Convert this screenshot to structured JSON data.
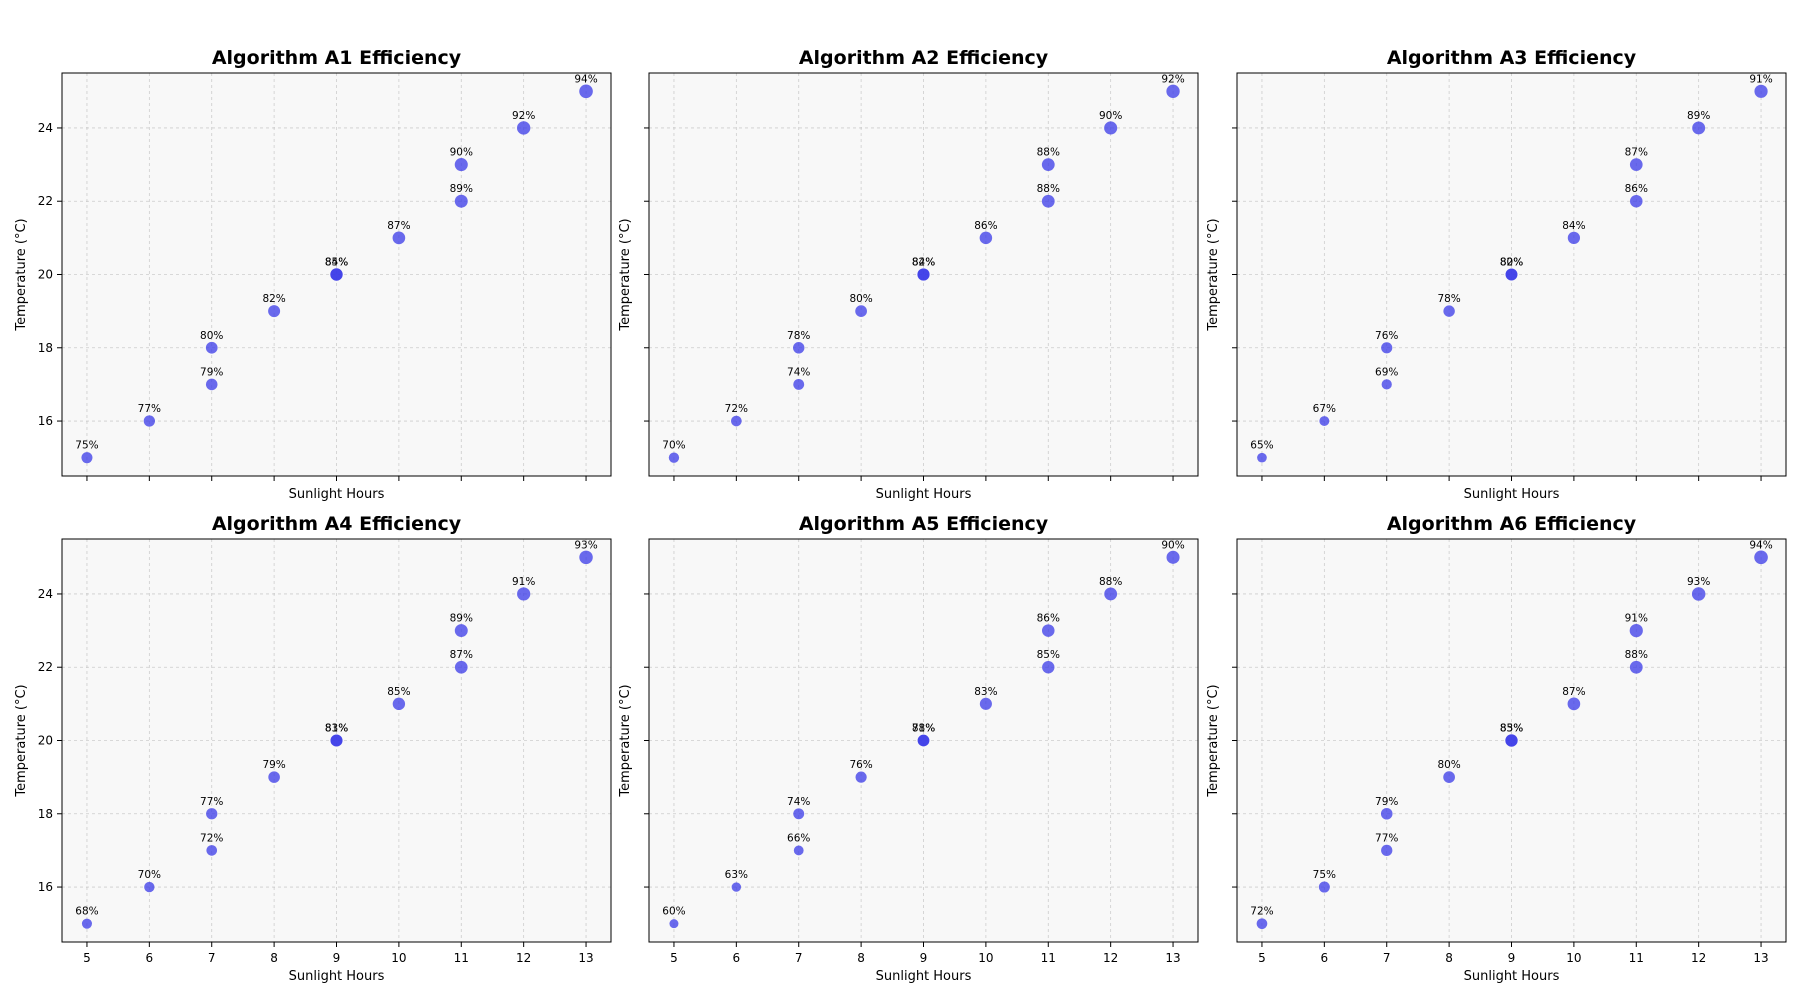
{
  "figure": {
    "background": "#ffffff",
    "panel_background": "#f8f8f8",
    "point_color": "#3a3ae8",
    "grid": true,
    "sharex": true,
    "sharey": true
  },
  "chart_data": [
    {
      "type": "scatter",
      "title": "Algorithm A1 Efficiency",
      "xlabel": "Sunlight Hours",
      "ylabel": "Temperature (°C)",
      "xlim": [
        4.6,
        13.4
      ],
      "ylim": [
        14.5,
        25.5
      ],
      "xticks": [
        5,
        6,
        7,
        8,
        9,
        10,
        11,
        12,
        13
      ],
      "yticks": [
        16,
        18,
        20,
        22,
        24
      ],
      "points": [
        {
          "x": 5,
          "y": 15,
          "label": "75%"
        },
        {
          "x": 6,
          "y": 16,
          "label": "77%"
        },
        {
          "x": 7,
          "y": 17,
          "label": "79%"
        },
        {
          "x": 7,
          "y": 18,
          "label": "80%"
        },
        {
          "x": 8,
          "y": 19,
          "label": "82%"
        },
        {
          "x": 9,
          "y": 20,
          "label": "85%"
        },
        {
          "x": 9,
          "y": 20,
          "label": "84%"
        },
        {
          "x": 10,
          "y": 21,
          "label": "87%"
        },
        {
          "x": 11,
          "y": 22,
          "label": "89%"
        },
        {
          "x": 11,
          "y": 23,
          "label": "90%"
        },
        {
          "x": 12,
          "y": 24,
          "label": "92%"
        },
        {
          "x": 13,
          "y": 25,
          "label": "94%"
        }
      ]
    },
    {
      "type": "scatter",
      "title": "Algorithm A2 Efficiency",
      "xlabel": "Sunlight Hours",
      "ylabel": "Temperature (°C)",
      "xlim": [
        4.6,
        13.4
      ],
      "ylim": [
        14.5,
        25.5
      ],
      "xticks": [
        5,
        6,
        7,
        8,
        9,
        10,
        11,
        12,
        13
      ],
      "yticks": [
        16,
        18,
        20,
        22,
        24
      ],
      "points": [
        {
          "x": 5,
          "y": 15,
          "label": "70%"
        },
        {
          "x": 6,
          "y": 16,
          "label": "72%"
        },
        {
          "x": 7,
          "y": 17,
          "label": "74%"
        },
        {
          "x": 7,
          "y": 18,
          "label": "78%"
        },
        {
          "x": 8,
          "y": 19,
          "label": "80%"
        },
        {
          "x": 9,
          "y": 20,
          "label": "82%"
        },
        {
          "x": 9,
          "y": 20,
          "label": "84%"
        },
        {
          "x": 10,
          "y": 21,
          "label": "86%"
        },
        {
          "x": 11,
          "y": 22,
          "label": "88%"
        },
        {
          "x": 11,
          "y": 23,
          "label": "88%"
        },
        {
          "x": 12,
          "y": 24,
          "label": "90%"
        },
        {
          "x": 13,
          "y": 25,
          "label": "92%"
        }
      ]
    },
    {
      "type": "scatter",
      "title": "Algorithm A3 Efficiency",
      "xlabel": "Sunlight Hours",
      "ylabel": "Temperature (°C)",
      "xlim": [
        4.6,
        13.4
      ],
      "ylim": [
        14.5,
        25.5
      ],
      "xticks": [
        5,
        6,
        7,
        8,
        9,
        10,
        11,
        12,
        13
      ],
      "yticks": [
        16,
        18,
        20,
        22,
        24
      ],
      "points": [
        {
          "x": 5,
          "y": 15,
          "label": "65%"
        },
        {
          "x": 6,
          "y": 16,
          "label": "67%"
        },
        {
          "x": 7,
          "y": 17,
          "label": "69%"
        },
        {
          "x": 7,
          "y": 18,
          "label": "76%"
        },
        {
          "x": 8,
          "y": 19,
          "label": "78%"
        },
        {
          "x": 9,
          "y": 20,
          "label": "80%"
        },
        {
          "x": 9,
          "y": 20,
          "label": "82%"
        },
        {
          "x": 10,
          "y": 21,
          "label": "84%"
        },
        {
          "x": 11,
          "y": 22,
          "label": "86%"
        },
        {
          "x": 11,
          "y": 23,
          "label": "87%"
        },
        {
          "x": 12,
          "y": 24,
          "label": "89%"
        },
        {
          "x": 13,
          "y": 25,
          "label": "91%"
        }
      ]
    },
    {
      "type": "scatter",
      "title": "Algorithm A4 Efficiency",
      "xlabel": "Sunlight Hours",
      "ylabel": "Temperature (°C)",
      "xlim": [
        4.6,
        13.4
      ],
      "ylim": [
        14.5,
        25.5
      ],
      "xticks": [
        5,
        6,
        7,
        8,
        9,
        10,
        11,
        12,
        13
      ],
      "yticks": [
        16,
        18,
        20,
        22,
        24
      ],
      "points": [
        {
          "x": 5,
          "y": 15,
          "label": "68%"
        },
        {
          "x": 6,
          "y": 16,
          "label": "70%"
        },
        {
          "x": 7,
          "y": 17,
          "label": "72%"
        },
        {
          "x": 7,
          "y": 18,
          "label": "77%"
        },
        {
          "x": 8,
          "y": 19,
          "label": "79%"
        },
        {
          "x": 9,
          "y": 20,
          "label": "81%"
        },
        {
          "x": 9,
          "y": 20,
          "label": "83%"
        },
        {
          "x": 10,
          "y": 21,
          "label": "85%"
        },
        {
          "x": 11,
          "y": 22,
          "label": "87%"
        },
        {
          "x": 11,
          "y": 23,
          "label": "89%"
        },
        {
          "x": 12,
          "y": 24,
          "label": "91%"
        },
        {
          "x": 13,
          "y": 25,
          "label": "93%"
        }
      ]
    },
    {
      "type": "scatter",
      "title": "Algorithm A5 Efficiency",
      "xlabel": "Sunlight Hours",
      "ylabel": "Temperature (°C)",
      "xlim": [
        4.6,
        13.4
      ],
      "ylim": [
        14.5,
        25.5
      ],
      "xticks": [
        5,
        6,
        7,
        8,
        9,
        10,
        11,
        12,
        13
      ],
      "yticks": [
        16,
        18,
        20,
        22,
        24
      ],
      "points": [
        {
          "x": 5,
          "y": 15,
          "label": "60%"
        },
        {
          "x": 6,
          "y": 16,
          "label": "63%"
        },
        {
          "x": 7,
          "y": 17,
          "label": "66%"
        },
        {
          "x": 7,
          "y": 18,
          "label": "74%"
        },
        {
          "x": 8,
          "y": 19,
          "label": "76%"
        },
        {
          "x": 9,
          "y": 20,
          "label": "78%"
        },
        {
          "x": 9,
          "y": 20,
          "label": "81%"
        },
        {
          "x": 10,
          "y": 21,
          "label": "83%"
        },
        {
          "x": 11,
          "y": 22,
          "label": "85%"
        },
        {
          "x": 11,
          "y": 23,
          "label": "86%"
        },
        {
          "x": 12,
          "y": 24,
          "label": "88%"
        },
        {
          "x": 13,
          "y": 25,
          "label": "90%"
        }
      ]
    },
    {
      "type": "scatter",
      "title": "Algorithm A6 Efficiency",
      "xlabel": "Sunlight Hours",
      "ylabel": "Temperature (°C)",
      "xlim": [
        4.6,
        13.4
      ],
      "ylim": [
        14.5,
        25.5
      ],
      "xticks": [
        5,
        6,
        7,
        8,
        9,
        10,
        11,
        12,
        13
      ],
      "yticks": [
        16,
        18,
        20,
        22,
        24
      ],
      "points": [
        {
          "x": 5,
          "y": 15,
          "label": "72%"
        },
        {
          "x": 6,
          "y": 16,
          "label": "75%"
        },
        {
          "x": 7,
          "y": 17,
          "label": "77%"
        },
        {
          "x": 7,
          "y": 18,
          "label": "79%"
        },
        {
          "x": 8,
          "y": 19,
          "label": "80%"
        },
        {
          "x": 9,
          "y": 20,
          "label": "83%"
        },
        {
          "x": 9,
          "y": 20,
          "label": "85%"
        },
        {
          "x": 10,
          "y": 21,
          "label": "87%"
        },
        {
          "x": 11,
          "y": 22,
          "label": "88%"
        },
        {
          "x": 11,
          "y": 23,
          "label": "91%"
        },
        {
          "x": 12,
          "y": 24,
          "label": "93%"
        },
        {
          "x": 13,
          "y": 25,
          "label": "94%"
        }
      ]
    }
  ]
}
